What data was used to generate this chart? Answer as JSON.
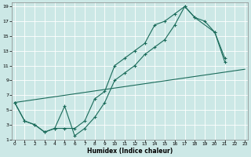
{
  "xlabel": "Humidex (Indice chaleur)",
  "bg_color": "#cce8e6",
  "line_color": "#1a6b5a",
  "grid_color": "#b8d8d4",
  "xlim": [
    0,
    23
  ],
  "ylim": [
    1,
    19
  ],
  "xtick_vals": [
    0,
    1,
    2,
    3,
    4,
    5,
    6,
    7,
    8,
    9,
    10,
    11,
    12,
    13,
    14,
    15,
    16,
    17,
    18,
    19,
    20,
    21,
    22,
    23
  ],
  "ytick_vals": [
    1,
    3,
    5,
    7,
    9,
    11,
    13,
    15,
    17,
    19
  ],
  "line1_x": [
    0,
    1,
    2,
    3,
    4,
    5,
    6,
    7,
    8,
    9,
    10,
    11,
    12,
    13,
    14,
    15,
    16,
    17,
    18,
    20,
    21
  ],
  "line1_y": [
    6,
    3.5,
    3,
    2,
    2.5,
    2.5,
    2.5,
    3.5,
    6.5,
    7.5,
    11,
    12,
    13,
    14,
    16.5,
    17,
    18,
    19,
    17.5,
    15.5,
    12
  ],
  "line2_x": [
    0,
    1,
    2,
    3,
    4,
    5,
    6,
    7,
    8,
    9,
    10,
    11,
    12,
    13,
    14,
    15,
    16,
    17,
    18,
    19,
    20,
    21
  ],
  "line2_y": [
    6,
    3.5,
    3,
    2,
    2.5,
    5.5,
    1.5,
    2.5,
    4,
    6,
    9,
    10,
    11,
    12.5,
    13.5,
    14.5,
    16.5,
    19,
    17.5,
    17,
    15.5,
    11.5
  ],
  "line3_x": [
    0,
    23
  ],
  "line3_y": [
    6,
    10.5
  ]
}
